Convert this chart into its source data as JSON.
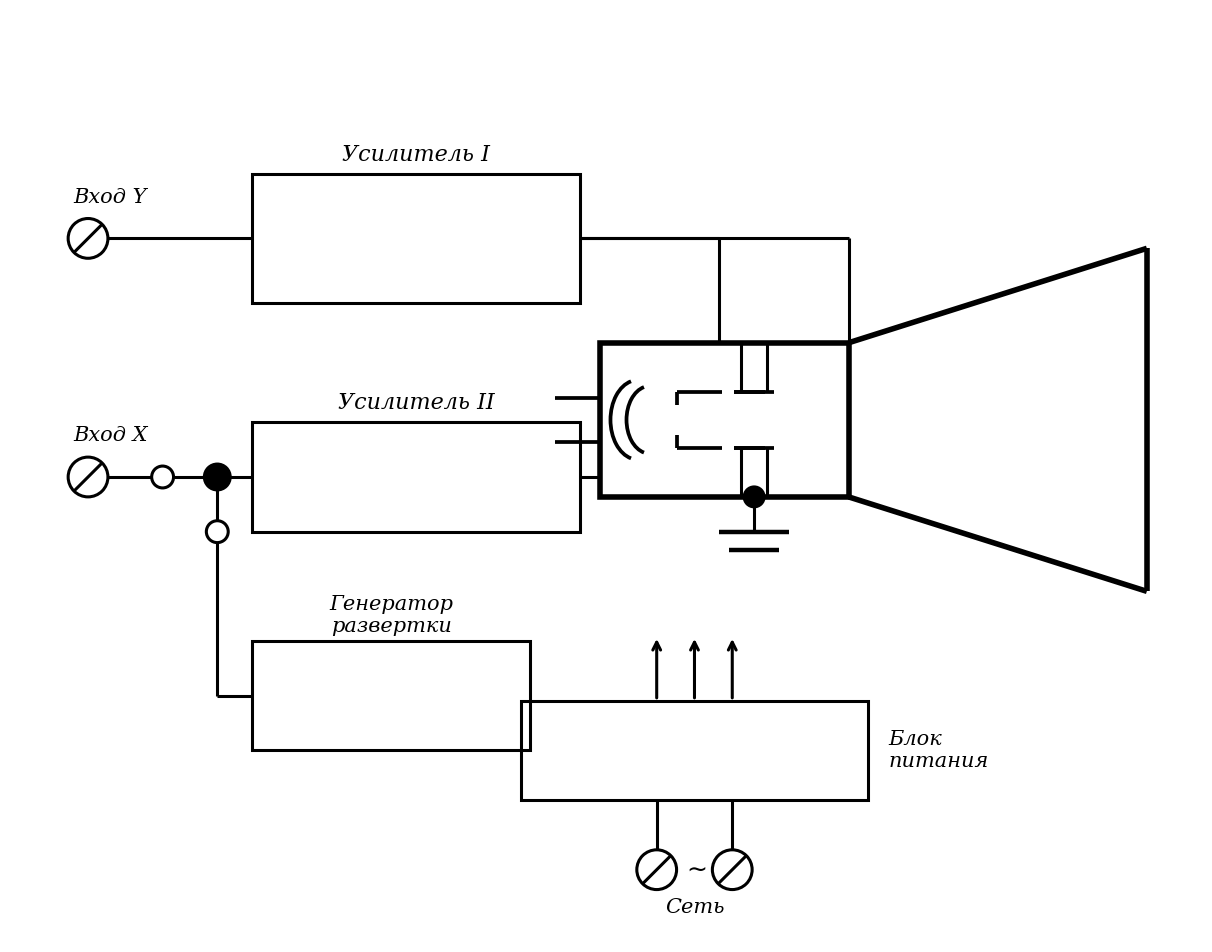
{
  "bg_color": "#ffffff",
  "line_color": "#000000",
  "fig_width": 12.12,
  "fig_height": 9.52,
  "labels": {
    "vhod_y": "Вход Y",
    "vhod_x": "Вход X",
    "usilitel_1": "Усилитель I",
    "usilitel_2": "Усилитель II",
    "generator": "Генератор\nразвертки",
    "blok": "Блок\nпитания",
    "set": "Сеть"
  }
}
